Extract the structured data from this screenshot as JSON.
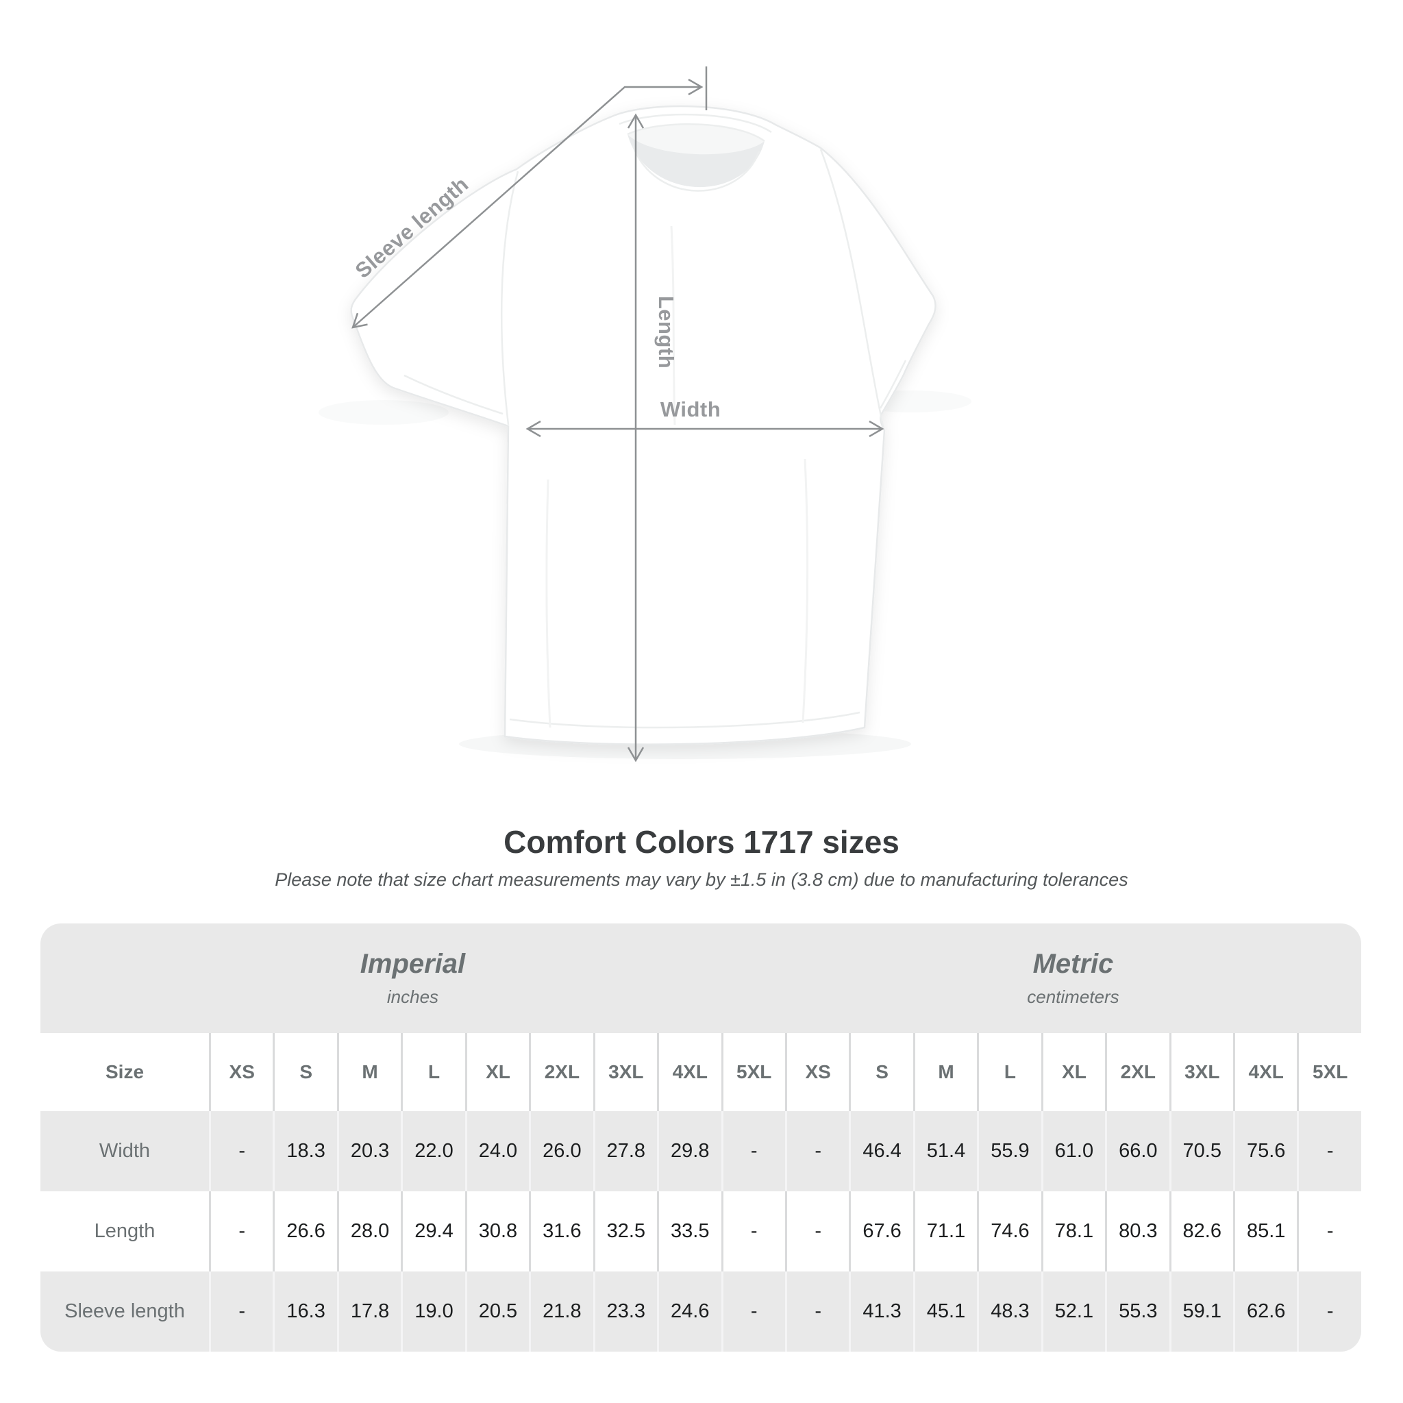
{
  "diagram": {
    "sleeve_label": "Sleeve length",
    "length_label": "Length",
    "width_label": "Width"
  },
  "header": {
    "title": "Comfort Colors 1717 sizes",
    "subtitle": "Please note that size chart measurements may vary by ±1.5 in (3.8 cm) due to manufacturing tolerances"
  },
  "table": {
    "unit_groups": [
      {
        "label": "Imperial",
        "sublabel": "inches"
      },
      {
        "label": "Metric",
        "sublabel": "centimeters"
      }
    ],
    "size_column_header": "Size",
    "size_labels": [
      "XS",
      "S",
      "M",
      "L",
      "XL",
      "2XL",
      "3XL",
      "4XL",
      "5XL"
    ],
    "rows": [
      {
        "label": "Width",
        "imperial": [
          "-",
          "18.3",
          "20.3",
          "22.0",
          "24.0",
          "26.0",
          "27.8",
          "29.8",
          "-"
        ],
        "metric": [
          "-",
          "46.4",
          "51.4",
          "55.9",
          "61.0",
          "66.0",
          "70.5",
          "75.6",
          "-"
        ]
      },
      {
        "label": "Length",
        "imperial": [
          "-",
          "26.6",
          "28.0",
          "29.4",
          "30.8",
          "31.6",
          "32.5",
          "33.5",
          "-"
        ],
        "metric": [
          "-",
          "67.6",
          "71.1",
          "74.6",
          "78.1",
          "80.3",
          "82.6",
          "85.1",
          "-"
        ]
      },
      {
        "label": "Sleeve length",
        "imperial": [
          "-",
          "16.3",
          "17.8",
          "19.0",
          "20.5",
          "21.8",
          "23.3",
          "24.6",
          "-"
        ],
        "metric": [
          "-",
          "41.3",
          "45.1",
          "48.3",
          "52.1",
          "55.3",
          "59.1",
          "62.6",
          "-"
        ]
      }
    ]
  },
  "colors": {
    "table_band_gray": "#e9e9e9",
    "label_gray": "#6b7173",
    "data_text": "#1c1e1f",
    "measure_line_gray": "#8e9193",
    "measure_label_gray": "#97999c",
    "title_text": "#393c3e"
  }
}
